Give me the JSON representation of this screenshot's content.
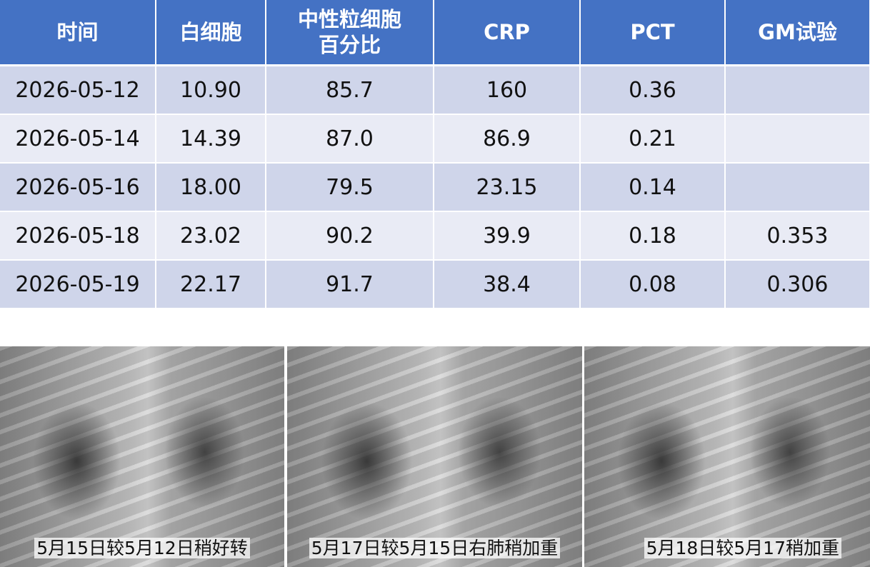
{
  "table": {
    "header": [
      "时间",
      "白细胞",
      "中性粒细胞百分比",
      "CRP",
      "PCT",
      "GM试验"
    ],
    "rows": [
      [
        "2026-05-12",
        "10.90",
        "85.7",
        "160",
        "0.36",
        null
      ],
      [
        "2026-05-14",
        "14.39",
        "87.0",
        "86.9",
        "0.21",
        null
      ],
      [
        "2026-05-16",
        "18.00",
        "79.5",
        "23.15",
        "0.14",
        null
      ],
      [
        "2026-05-18",
        "23.02",
        "90.2",
        "39.9",
        "0.18",
        "0.353"
      ],
      [
        "2026-05-19",
        "22.17",
        "91.7",
        "38.4",
        "0.08",
        "0.306"
      ]
    ]
  },
  "images": [
    {
      "caption": "5月15日较5月12日稍好转"
    },
    {
      "caption": "5月17日较5月15日右肺稍加重"
    },
    {
      "caption": "5月18日较5月17稍加重"
    }
  ]
}
